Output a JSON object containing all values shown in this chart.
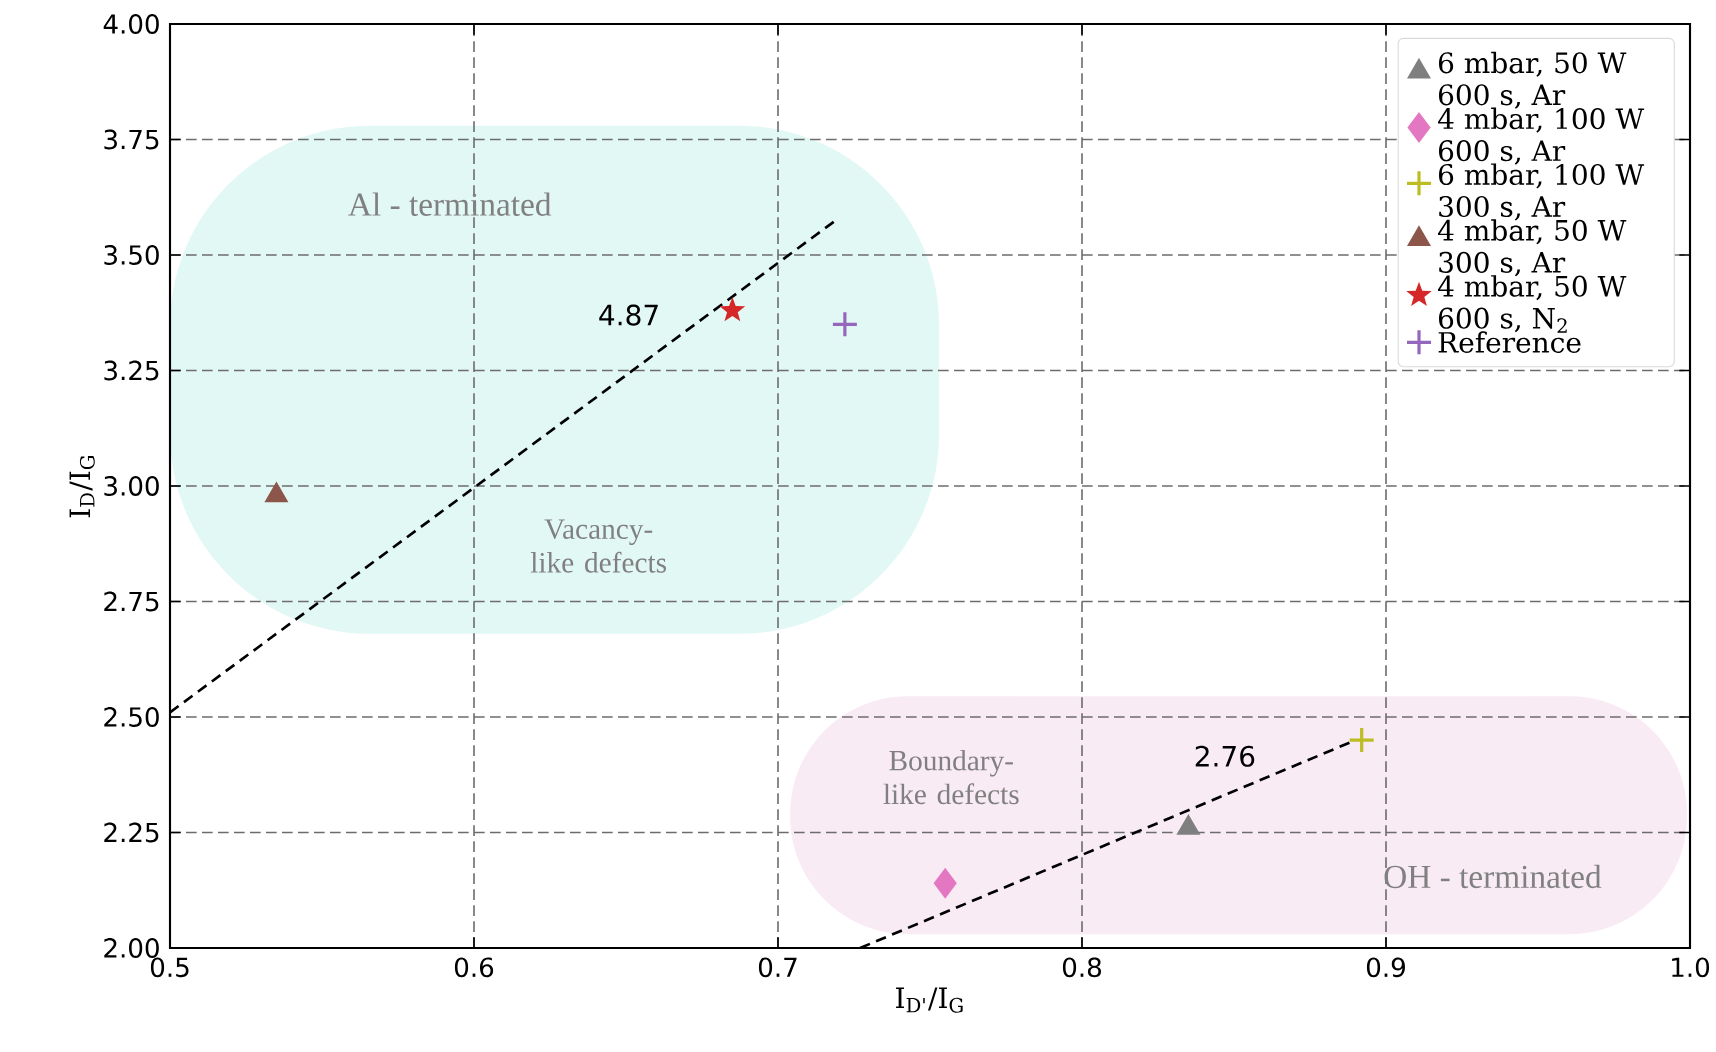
{
  "chart_data": {
    "type": "scatter",
    "xlabel": "I$_{D'}$/I$_{G}$",
    "ylabel": "I$_{D}$/I$_{G}$",
    "xlim": [
      0.5,
      1.0
    ],
    "ylim": [
      2.0,
      4.0
    ],
    "xticks": [
      0.5,
      0.6,
      0.7,
      0.8,
      0.9,
      {
        "value": 1.0,
        "label": "1.0"
      }
    ],
    "yticks": [
      {
        "value": 2.0,
        "label": "2.00"
      },
      {
        "value": 2.25,
        "label": "2.25"
      },
      {
        "value": 2.5,
        "label": "2.50"
      },
      {
        "value": 2.75,
        "label": "2.75"
      },
      {
        "value": 3.0,
        "label": "3.00"
      },
      {
        "value": 3.25,
        "label": "3.25"
      },
      {
        "value": 3.5,
        "label": "3.50"
      },
      {
        "value": 3.75,
        "label": "3.75"
      },
      {
        "value": 4.0,
        "label": "4.00"
      }
    ],
    "grid": true,
    "legend": "top right",
    "series": [
      {
        "name": "6 mbar, 50 W 600 s, Ar",
        "color": "#7f7f7f",
        "marker": "triangle",
        "x": [
          0.835
        ],
        "values": [
          2.26
        ]
      },
      {
        "name": "4 mbar, 100 W 600 s, Ar",
        "color": "#e377c2",
        "marker": "diamond",
        "x": [
          0.755
        ],
        "values": [
          2.14
        ]
      },
      {
        "name": "6 mbar, 100 W 300 s, Ar",
        "color": "#bcbd22",
        "marker": "cross",
        "x": [
          0.892
        ],
        "values": [
          2.45
        ]
      },
      {
        "name": "4 mbar, 50 W 300 s, Ar",
        "color": "#8c564b",
        "marker": "triangle",
        "x": [
          0.535
        ],
        "values": [
          2.98
        ]
      },
      {
        "name": "4 mbar, 50 W 600 s, N$_{2}$",
        "color": "#d62728",
        "marker": "star",
        "x": [
          0.685
        ],
        "values": [
          3.38
        ]
      },
      {
        "name": "Reference",
        "color": "#9467bd",
        "marker": "cross",
        "x": [
          0.722
        ],
        "values": [
          3.35
        ]
      },
      {
        "type": "line",
        "color": "#000000",
        "line_style": "dashed",
        "x": [
          0.5,
          0.72
        ],
        "values": [
          2.51,
          3.58
        ]
      },
      {
        "type": "line",
        "color": "#000000",
        "line_style": "dashed",
        "x": [
          0.727,
          0.89
        ],
        "values": [
          2.0,
          2.45
        ]
      }
    ],
    "annotations": [
      "Al - terminated",
      "Vacancy-like defects",
      "Boundary-like defects",
      "OH - terminated",
      "4.87",
      "2.76"
    ]
  }
}
